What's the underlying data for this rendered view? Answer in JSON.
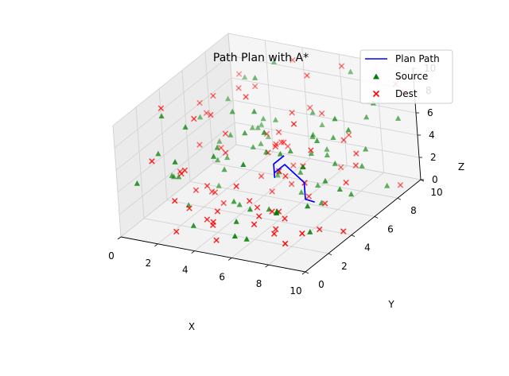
{
  "chart_data": {
    "type": "scatter",
    "projection": "3d",
    "title": "Path Plan with A*",
    "xlabel": "X",
    "ylabel": "Y",
    "zlabel": "Z",
    "xlim": [
      0,
      10
    ],
    "ylim": [
      0,
      10
    ],
    "zlim": [
      0,
      10
    ],
    "xticks": [
      "0",
      "2",
      "4",
      "6",
      "8",
      "10"
    ],
    "yticks": [
      "0",
      "2",
      "4",
      "6",
      "8",
      "10"
    ],
    "zticks": [
      "0",
      "2",
      "4",
      "6",
      "8",
      "10"
    ],
    "grid": true,
    "legend_position": "top-right",
    "colors": {
      "path": "#0000ff",
      "source": "#008000",
      "dest": "#ff0000"
    },
    "series": [
      {
        "name": "Plan Path",
        "kind": "line",
        "points": [
          [
            5.6,
            5.5,
            4.5
          ],
          [
            5.6,
            4.6,
            4.5
          ],
          [
            5.6,
            4.6,
            3.3
          ],
          [
            5.6,
            4.6,
            3.7
          ],
          [
            5.6,
            5.5,
            3.7
          ],
          [
            6.6,
            5.5,
            2.4
          ],
          [
            6.6,
            5.5,
            0.9
          ],
          [
            7.1,
            5.5,
            0.8
          ]
        ]
      },
      {
        "name": "Source",
        "kind": "marker",
        "marker": "^",
        "points": [
          [
            0.4,
            6.6,
            5.4
          ],
          [
            1.4,
            6.3,
            2.1
          ],
          [
            2.8,
            0.7,
            7.0
          ],
          [
            3.4,
            6.3,
            3.9
          ],
          [
            5.8,
            7.7,
            4.6
          ],
          [
            6.0,
            0.4,
            1.6
          ],
          [
            3.2,
            7.6,
            5.3
          ],
          [
            0.9,
            2.2,
            5.9
          ],
          [
            1.1,
            7.0,
            3.1
          ],
          [
            7.9,
            1.1,
            3.7
          ],
          [
            1.5,
            3.5,
            0.4
          ],
          [
            3.8,
            7.7,
            5.3
          ],
          [
            6.3,
            8.0,
            3.2
          ],
          [
            3.2,
            8.8,
            9.4
          ],
          [
            8.8,
            2.4,
            1.2
          ],
          [
            1.7,
            5.8,
            0.3
          ],
          [
            2.5,
            2.2,
            8.8
          ],
          [
            8.6,
            6.3,
            1.3
          ],
          [
            9.6,
            9.1,
            6.1
          ],
          [
            3.0,
            7.4,
            4.6
          ],
          [
            4.7,
            5.4,
            4.6
          ],
          [
            5.7,
            6.6,
            2.1
          ],
          [
            5.2,
            3.0,
            1.6
          ],
          [
            2.7,
            7.4,
            4.5
          ],
          [
            2.6,
            8.3,
            4.0
          ],
          [
            8.7,
            6.3,
            7.1
          ],
          [
            3.9,
            4.1,
            0.7
          ],
          [
            3.7,
            7.7,
            0.3
          ],
          [
            6.0,
            4.6,
            5.5
          ],
          [
            3.3,
            7.0,
            9.5
          ],
          [
            6.2,
            7.2,
            0.6
          ],
          [
            7.4,
            5.6,
            6.3
          ],
          [
            7.2,
            5.9,
            0.4
          ],
          [
            5.6,
            8.1,
            6.2
          ],
          [
            1.2,
            9.3,
            7.0
          ],
          [
            4.2,
            4.5,
            6.9
          ],
          [
            8.7,
            7.6,
            4.3
          ],
          [
            5.6,
            4.0,
            7.8
          ],
          [
            8.1,
            5.0,
            3.4
          ],
          [
            2.6,
            5.0,
            2.7
          ],
          [
            0.2,
            4.4,
            1.8
          ],
          [
            3.8,
            3.8,
            1.2
          ],
          [
            7.1,
            7.4,
            5.0
          ],
          [
            8.4,
            5.7,
            8.5
          ],
          [
            6.3,
            6.7,
            3.9
          ],
          [
            3.0,
            5.4,
            7.7
          ],
          [
            3.3,
            7.1,
            3.5
          ],
          [
            0.7,
            0.6,
            4.5
          ],
          [
            2.7,
            4.4,
            5.2
          ],
          [
            8.7,
            2.5,
            3.4
          ],
          [
            1.2,
            7.8,
            6.3
          ],
          [
            2.0,
            6.2,
            2.6
          ],
          [
            5.4,
            1.5,
            1.8
          ],
          [
            6.1,
            1.2,
            0.7
          ],
          [
            5.9,
            5.6,
            4.9
          ],
          [
            6.7,
            9.8,
            8.8
          ],
          [
            3.6,
            2.7,
            6.1
          ],
          [
            5.0,
            5.9,
            2.5
          ],
          [
            2.2,
            6.3,
            4.6
          ],
          [
            5.7,
            3.8,
            1.1
          ],
          [
            0.7,
            3.5,
            2.8
          ],
          [
            7.7,
            6.5,
            3.6
          ],
          [
            8.5,
            7.5,
            2.8
          ],
          [
            5.8,
            6.4,
            0.5
          ],
          [
            7.2,
            2.2,
            2.7
          ],
          [
            8.4,
            8.3,
            6.5
          ],
          [
            6.7,
            7.4,
            3.3
          ],
          [
            9.2,
            8.4,
            0.5
          ],
          [
            1.3,
            2.1,
            9.5
          ],
          [
            5.8,
            1.8,
            6.8
          ],
          [
            5.7,
            7.8,
            4.3
          ],
          [
            8.8,
            2.2,
            7.2
          ],
          [
            8.8,
            5.1,
            2.8
          ],
          [
            1.0,
            3.6,
            2.7
          ],
          [
            5.4,
            9.1,
            4.2
          ],
          [
            2.6,
            8.8,
            2.5
          ],
          [
            6.3,
            3.5,
            1.2
          ],
          [
            4.4,
            5.1,
            8.4
          ],
          [
            8.9,
            8.2,
            8.0
          ],
          [
            3.1,
            1.4,
            0.8
          ]
        ]
      },
      {
        "name": "Dest",
        "kind": "marker",
        "marker": "x",
        "points": [
          [
            2.7,
            1.6,
            5.5
          ],
          [
            3.2,
            7.8,
            3.8
          ],
          [
            8.9,
            6.5,
            4.9
          ],
          [
            1.6,
            0.6,
            6.8
          ],
          [
            7.9,
            0.8,
            2.1
          ],
          [
            5.5,
            8.0,
            9.6
          ],
          [
            3.6,
            1.8,
            1.2
          ],
          [
            7.4,
            2.5,
            1.9
          ],
          [
            0.7,
            6.7,
            5.8
          ],
          [
            7.0,
            4.4,
            8.7
          ],
          [
            6.5,
            3.4,
            1.5
          ],
          [
            1.7,
            6.2,
            3.4
          ],
          [
            6.1,
            8.1,
            6.3
          ],
          [
            5.5,
            5.7,
            5.5
          ],
          [
            4.6,
            5.7,
            4.3
          ],
          [
            0.3,
            6.8,
            6.5
          ],
          [
            2.6,
            5.3,
            5.7
          ],
          [
            8.7,
            2.4,
            5.6
          ],
          [
            2.1,
            7.4,
            7.9
          ],
          [
            9.3,
            1.0,
            2.4
          ],
          [
            7.3,
            8.4,
            4.5
          ],
          [
            7.2,
            2.0,
            1.3
          ],
          [
            3.7,
            9.6,
            9.1
          ],
          [
            8.7,
            6.7,
            3.6
          ],
          [
            6.4,
            6.1,
            0.6
          ],
          [
            0.5,
            4.5,
            2.3
          ],
          [
            5.1,
            6.7,
            0.8
          ],
          [
            9.7,
            3.8,
            0.4
          ],
          [
            6.7,
            1.0,
            2.4
          ],
          [
            1.7,
            5.2,
            0.3
          ],
          [
            6.2,
            4.6,
            3.6
          ],
          [
            9.0,
            2.9,
            1.1
          ],
          [
            7.9,
            4.3,
            6.7
          ],
          [
            4.1,
            1.5,
            1.1
          ],
          [
            2.6,
            4.2,
            8.3
          ],
          [
            4.8,
            2.6,
            3.9
          ],
          [
            5.2,
            7.0,
            7.0
          ],
          [
            0.4,
            6.4,
            3.1
          ],
          [
            2.4,
            1.0,
            0.4
          ],
          [
            9.4,
            9.4,
            8.9
          ],
          [
            4.5,
            1.1,
            0.2
          ],
          [
            3.6,
            6.5,
            1.2
          ],
          [
            2.2,
            8.6,
            7.1
          ],
          [
            4.1,
            7.6,
            3.5
          ],
          [
            3.1,
            4.0,
            0.7
          ],
          [
            3.8,
            5.4,
            9.3
          ],
          [
            4.6,
            6.7,
            5.3
          ],
          [
            5.5,
            5.0,
            5.7
          ],
          [
            2.2,
            4.7,
            0.8
          ],
          [
            2.4,
            2.2,
            1.5
          ],
          [
            6.2,
            3.3,
            1.5
          ],
          [
            1.4,
            6.3,
            7.9
          ],
          [
            6.6,
            1.6,
            2.6
          ],
          [
            0.7,
            9.6,
            6.9
          ],
          [
            3.2,
            4.3,
            5.0
          ],
          [
            5.2,
            8.5,
            6.2
          ],
          [
            4.8,
            7.4,
            1.8
          ],
          [
            7.0,
            4.9,
            4.5
          ],
          [
            6.5,
            9.4,
            9.6
          ],
          [
            5.4,
            3.3,
            1.6
          ],
          [
            6.6,
            8.6,
            1.2
          ],
          [
            0.9,
            2.7,
            9.6
          ],
          [
            5.0,
            5.8,
            5.1
          ],
          [
            8.5,
            6.1,
            2.5
          ],
          [
            1.9,
            2.5,
            4.2
          ],
          [
            2.9,
            0.3,
            3.9
          ],
          [
            5.6,
            2.4,
            3.0
          ],
          [
            8.4,
            4.4,
            2.0
          ],
          [
            6.8,
            3.2,
            5.4
          ],
          [
            2.4,
            3.1,
            8.8
          ],
          [
            9.8,
            9.5,
            8.2
          ],
          [
            1.7,
            3.9,
            1.5
          ],
          [
            2.6,
            3.5,
            2.5
          ],
          [
            3.8,
            2.4,
            1.5
          ],
          [
            9.6,
            8.9,
            0.3
          ],
          [
            3.9,
            8.4,
            2.4
          ],
          [
            4.2,
            1.4,
            1.5
          ],
          [
            8.0,
            6.9,
            5.5
          ],
          [
            4.2,
            6.4,
            0.1
          ],
          [
            8.6,
            0.6,
            1.6
          ]
        ]
      }
    ]
  }
}
